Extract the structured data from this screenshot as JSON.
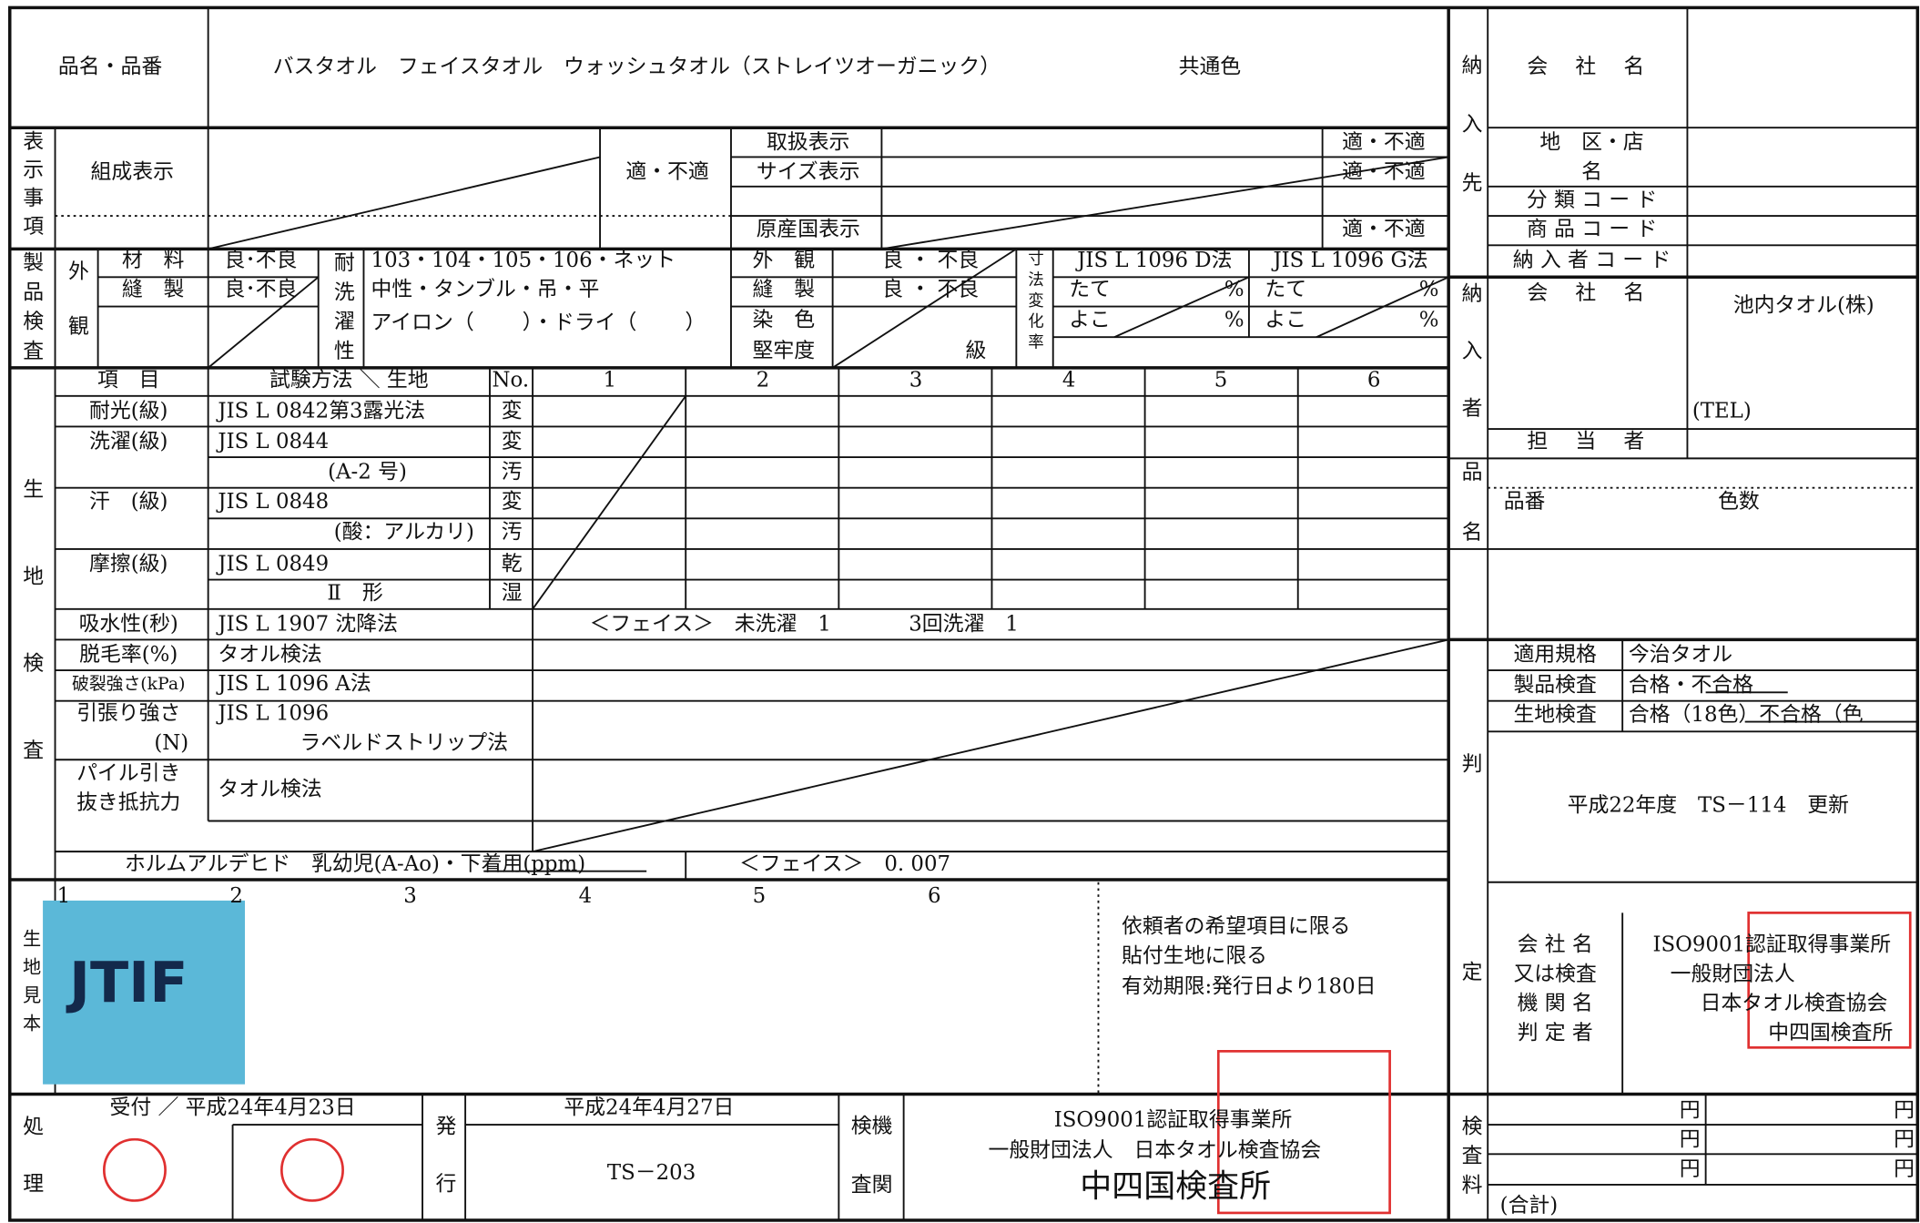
{
  "header": {
    "item_label": "品名・品番",
    "item_name": "バスタオル　フェイスタオル　ウォッシュタオル（ストレイツオーガニック）",
    "color": "共通色"
  },
  "labeling": {
    "section": "表示事項",
    "composition": "組成表示",
    "composition_result": "適・不適",
    "care": "取扱表示",
    "size": "サイズ表示",
    "origin": "原産国表示",
    "care_result": "適・不適",
    "size_result": "適・不適",
    "origin_result": "適・不適"
  },
  "product_inspection": {
    "section": "製品検査",
    "appearance": "外観",
    "material": "材　料",
    "sewing": "縫　製",
    "material_result": "良･不良",
    "sewing_result": "良･不良",
    "wash_durability": "耐洗濯性",
    "wash_lines": [
      "103・104・105・106・ネット",
      "中性・タンブル・吊・平",
      "アイロン（　　 ）・ドライ（　　 ）"
    ],
    "appearance2": "外　観",
    "sewing2": "縫　製",
    "dyeing": "染　色",
    "fastness": "堅牢度",
    "appearance2_result": "良 ・ 不良",
    "sewing2_result": "良 ・ 不良",
    "grade": "級",
    "dimension": "寸法変化率",
    "method_d": "JIS L 1096 D法",
    "method_g": "JIS L 1096 G法",
    "cells": [
      "たて",
      "%",
      "たて",
      "%",
      "よこ",
      "%",
      "よこ",
      "%"
    ]
  },
  "fabric": {
    "section": "生地検査",
    "col_item": "項　目",
    "col_method": "試験方法 ＼ 生地",
    "col_no": "No.",
    "samples": [
      "1",
      "2",
      "3",
      "4",
      "5",
      "6"
    ],
    "rows": [
      [
        "耐光(級)",
        "JIS L 0842第3露光法",
        "変"
      ],
      [
        "洗濯(級)",
        "JIS L 0844",
        "変"
      ],
      [
        "(A-2 号)",
        "汚"
      ],
      [
        "汗　(級)",
        "JIS L 0848",
        "変"
      ],
      [
        "(酸：アルカリ)",
        "汚"
      ],
      [
        "摩擦(級)",
        "JIS L 0849",
        "乾"
      ],
      [
        "Ⅱ　形",
        "湿"
      ],
      [
        "吸水性(秒)",
        "JIS L 1907 沈降法",
        "＜フェイス＞　未洗濯　1",
        "3回洗濯　1"
      ],
      [
        "脱毛率(%)",
        "タオル検法"
      ],
      [
        "破裂強さ(kPa)",
        "JIS L 1096 A法"
      ],
      [
        "引張り強さ",
        "JIS L 1096"
      ],
      [
        "(N)",
        "ラベルドストリップ法"
      ],
      [
        "パイル引き",
        "タオル検法"
      ],
      [
        "抜き抵抗力"
      ],
      [
        "ホルムアルデヒド　乳幼児(A-Ao)・下着用(ppm)",
        "＜フェイス＞　0. 007"
      ]
    ]
  },
  "sample": {
    "section": "生地見本",
    "numbers": [
      "1",
      "2",
      "3",
      "4",
      "5",
      "6"
    ],
    "swatch": "JTIF",
    "notes": [
      "依頼者の希望項目に限る",
      "貼付生地に限る",
      "有効期限:発行日より180日"
    ]
  },
  "processing": {
    "section": "処理",
    "received": "受付 ／ 平成24年4月23日",
    "issue": "発行",
    "issue_date": "平成24年4月27日",
    "number": "TS－203",
    "inspector": [
      "検機",
      "査関"
    ],
    "issuer": [
      "ISO9001認証取得事業所",
      "一般財団法人　日本タオル検査協会",
      "中四国検査所"
    ]
  },
  "destination": {
    "section": "納入先",
    "company": "会　 社　 名",
    "area": "地　区・店",
    "area2": "名",
    "class_code": "分 類 コ ー ド",
    "item_code": "商 品 コ ー ド",
    "supplier_code": "納 入 者 コ ー ド"
  },
  "supplier": {
    "section": "納入者",
    "company": "会　 社　 名",
    "company_name": "池内タオル(株)",
    "tel": "(TEL)",
    "person": "担　 当　 者"
  },
  "item": {
    "section": "品名",
    "number": "品番",
    "colors": "色数"
  },
  "judgment": {
    "section": "判定",
    "standard": "適用規格",
    "standard_value": "今治タオル",
    "product": "製品検査",
    "product_value": "合格・不合格",
    "fabric": "生地検査",
    "fabric_value": "合格（18色）不合格（色",
    "note": "平成22年度　TS－114　更新",
    "org_labels": [
      "会 社 名",
      "又は検査",
      "機 関 名",
      "判 定 者"
    ],
    "org": [
      "ISO9001認証取得事業所",
      "一般財団法人",
      "日本タオル検査協会",
      "中四国検査所"
    ]
  },
  "fee": {
    "section": "検査料",
    "yen": [
      "円",
      "円",
      "円",
      "円",
      "円",
      "円"
    ],
    "total": "(合計)"
  }
}
